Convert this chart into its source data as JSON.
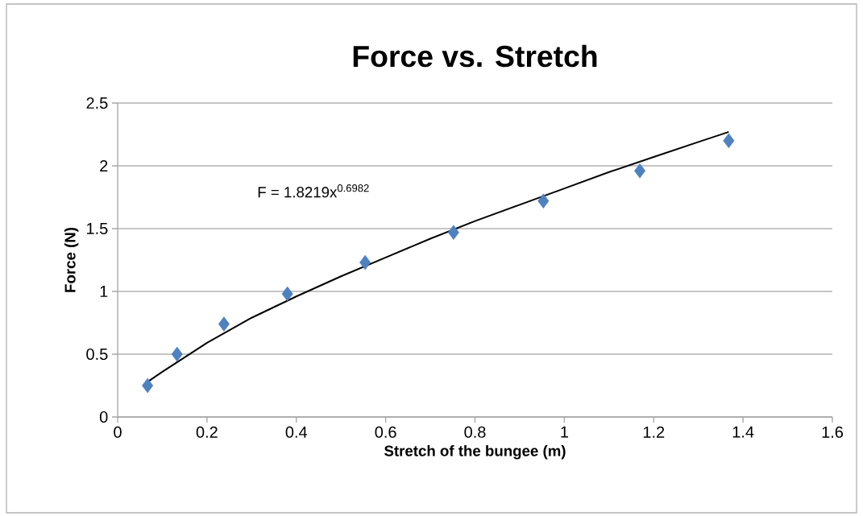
{
  "chart_data": {
    "type": "scatter",
    "title": "Force vs. Stretch",
    "xlabel": "Stretch of the bungee (m)",
    "ylabel": "Force (N)",
    "series": [
      {
        "color": "#4f81bd",
        "marker": "diamond",
        "x": [
          0.067,
          0.133,
          0.238,
          0.38,
          0.554,
          0.752,
          0.953,
          1.169,
          1.368
        ],
        "values": [
          0.25,
          0.5,
          0.74,
          0.98,
          1.23,
          1.47,
          1.72,
          1.96,
          2.2
        ]
      },
      {
        "type": "line",
        "color": "#000000",
        "marker": "none",
        "line_style": "solid",
        "x": [
          0.067,
          0.1,
          0.2,
          0.3,
          0.4,
          0.5,
          0.6,
          0.7,
          0.8,
          0.9,
          1.0,
          1.1,
          1.2,
          1.3,
          1.368
        ],
        "values": [
          0.28,
          0.36,
          0.59,
          0.79,
          0.96,
          1.12,
          1.27,
          1.42,
          1.56,
          1.69,
          1.82,
          1.95,
          2.07,
          2.19,
          2.27
        ]
      }
    ],
    "annotations": [
      "F = 1.8219x$^{0.6982}$"
    ],
    "xlim": [
      0,
      1.6
    ],
    "xticks": [
      0,
      0.2,
      0.4,
      0.6,
      0.8,
      1,
      1.2,
      1.4,
      1.6
    ],
    "ylim": [
      0,
      2.5
    ],
    "yticks": [
      0,
      0.5,
      1,
      1.5,
      2,
      2.5
    ],
    "grid": "y"
  }
}
